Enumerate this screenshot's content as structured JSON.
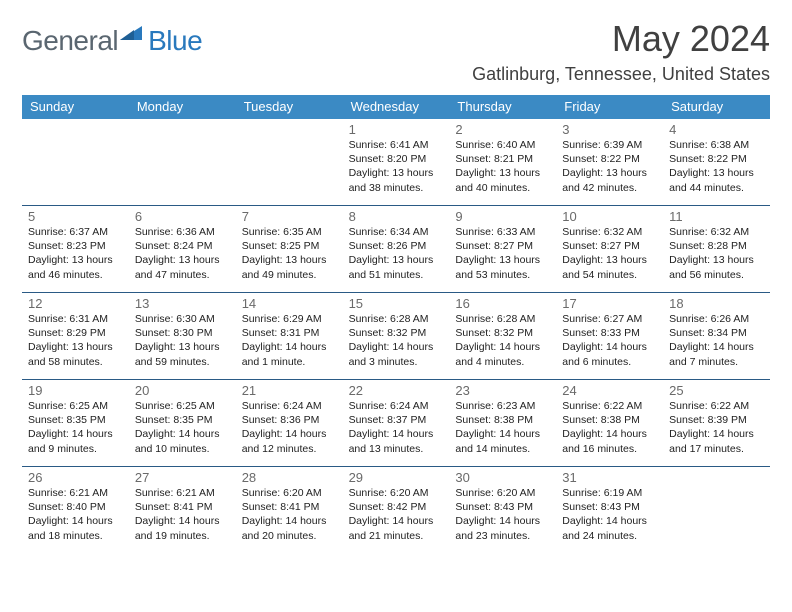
{
  "logo": {
    "general": "General",
    "blue": "Blue"
  },
  "title": "May 2024",
  "location": "Gatlinburg, Tennessee, United States",
  "accent_color": "#3b8ac4",
  "row_border_color": "#2a5a85",
  "day_names": [
    "Sunday",
    "Monday",
    "Tuesday",
    "Wednesday",
    "Thursday",
    "Friday",
    "Saturday"
  ],
  "weeks": [
    [
      {
        "n": "",
        "sr": "",
        "ss": "",
        "dl": ""
      },
      {
        "n": "",
        "sr": "",
        "ss": "",
        "dl": ""
      },
      {
        "n": "",
        "sr": "",
        "ss": "",
        "dl": ""
      },
      {
        "n": "1",
        "sr": "Sunrise: 6:41 AM",
        "ss": "Sunset: 8:20 PM",
        "dl": "Daylight: 13 hours and 38 minutes."
      },
      {
        "n": "2",
        "sr": "Sunrise: 6:40 AM",
        "ss": "Sunset: 8:21 PM",
        "dl": "Daylight: 13 hours and 40 minutes."
      },
      {
        "n": "3",
        "sr": "Sunrise: 6:39 AM",
        "ss": "Sunset: 8:22 PM",
        "dl": "Daylight: 13 hours and 42 minutes."
      },
      {
        "n": "4",
        "sr": "Sunrise: 6:38 AM",
        "ss": "Sunset: 8:22 PM",
        "dl": "Daylight: 13 hours and 44 minutes."
      }
    ],
    [
      {
        "n": "5",
        "sr": "Sunrise: 6:37 AM",
        "ss": "Sunset: 8:23 PM",
        "dl": "Daylight: 13 hours and 46 minutes."
      },
      {
        "n": "6",
        "sr": "Sunrise: 6:36 AM",
        "ss": "Sunset: 8:24 PM",
        "dl": "Daylight: 13 hours and 47 minutes."
      },
      {
        "n": "7",
        "sr": "Sunrise: 6:35 AM",
        "ss": "Sunset: 8:25 PM",
        "dl": "Daylight: 13 hours and 49 minutes."
      },
      {
        "n": "8",
        "sr": "Sunrise: 6:34 AM",
        "ss": "Sunset: 8:26 PM",
        "dl": "Daylight: 13 hours and 51 minutes."
      },
      {
        "n": "9",
        "sr": "Sunrise: 6:33 AM",
        "ss": "Sunset: 8:27 PM",
        "dl": "Daylight: 13 hours and 53 minutes."
      },
      {
        "n": "10",
        "sr": "Sunrise: 6:32 AM",
        "ss": "Sunset: 8:27 PM",
        "dl": "Daylight: 13 hours and 54 minutes."
      },
      {
        "n": "11",
        "sr": "Sunrise: 6:32 AM",
        "ss": "Sunset: 8:28 PM",
        "dl": "Daylight: 13 hours and 56 minutes."
      }
    ],
    [
      {
        "n": "12",
        "sr": "Sunrise: 6:31 AM",
        "ss": "Sunset: 8:29 PM",
        "dl": "Daylight: 13 hours and 58 minutes."
      },
      {
        "n": "13",
        "sr": "Sunrise: 6:30 AM",
        "ss": "Sunset: 8:30 PM",
        "dl": "Daylight: 13 hours and 59 minutes."
      },
      {
        "n": "14",
        "sr": "Sunrise: 6:29 AM",
        "ss": "Sunset: 8:31 PM",
        "dl": "Daylight: 14 hours and 1 minute."
      },
      {
        "n": "15",
        "sr": "Sunrise: 6:28 AM",
        "ss": "Sunset: 8:32 PM",
        "dl": "Daylight: 14 hours and 3 minutes."
      },
      {
        "n": "16",
        "sr": "Sunrise: 6:28 AM",
        "ss": "Sunset: 8:32 PM",
        "dl": "Daylight: 14 hours and 4 minutes."
      },
      {
        "n": "17",
        "sr": "Sunrise: 6:27 AM",
        "ss": "Sunset: 8:33 PM",
        "dl": "Daylight: 14 hours and 6 minutes."
      },
      {
        "n": "18",
        "sr": "Sunrise: 6:26 AM",
        "ss": "Sunset: 8:34 PM",
        "dl": "Daylight: 14 hours and 7 minutes."
      }
    ],
    [
      {
        "n": "19",
        "sr": "Sunrise: 6:25 AM",
        "ss": "Sunset: 8:35 PM",
        "dl": "Daylight: 14 hours and 9 minutes."
      },
      {
        "n": "20",
        "sr": "Sunrise: 6:25 AM",
        "ss": "Sunset: 8:35 PM",
        "dl": "Daylight: 14 hours and 10 minutes."
      },
      {
        "n": "21",
        "sr": "Sunrise: 6:24 AM",
        "ss": "Sunset: 8:36 PM",
        "dl": "Daylight: 14 hours and 12 minutes."
      },
      {
        "n": "22",
        "sr": "Sunrise: 6:24 AM",
        "ss": "Sunset: 8:37 PM",
        "dl": "Daylight: 14 hours and 13 minutes."
      },
      {
        "n": "23",
        "sr": "Sunrise: 6:23 AM",
        "ss": "Sunset: 8:38 PM",
        "dl": "Daylight: 14 hours and 14 minutes."
      },
      {
        "n": "24",
        "sr": "Sunrise: 6:22 AM",
        "ss": "Sunset: 8:38 PM",
        "dl": "Daylight: 14 hours and 16 minutes."
      },
      {
        "n": "25",
        "sr": "Sunrise: 6:22 AM",
        "ss": "Sunset: 8:39 PM",
        "dl": "Daylight: 14 hours and 17 minutes."
      }
    ],
    [
      {
        "n": "26",
        "sr": "Sunrise: 6:21 AM",
        "ss": "Sunset: 8:40 PM",
        "dl": "Daylight: 14 hours and 18 minutes."
      },
      {
        "n": "27",
        "sr": "Sunrise: 6:21 AM",
        "ss": "Sunset: 8:41 PM",
        "dl": "Daylight: 14 hours and 19 minutes."
      },
      {
        "n": "28",
        "sr": "Sunrise: 6:20 AM",
        "ss": "Sunset: 8:41 PM",
        "dl": "Daylight: 14 hours and 20 minutes."
      },
      {
        "n": "29",
        "sr": "Sunrise: 6:20 AM",
        "ss": "Sunset: 8:42 PM",
        "dl": "Daylight: 14 hours and 21 minutes."
      },
      {
        "n": "30",
        "sr": "Sunrise: 6:20 AM",
        "ss": "Sunset: 8:43 PM",
        "dl": "Daylight: 14 hours and 23 minutes."
      },
      {
        "n": "31",
        "sr": "Sunrise: 6:19 AM",
        "ss": "Sunset: 8:43 PM",
        "dl": "Daylight: 14 hours and 24 minutes."
      },
      {
        "n": "",
        "sr": "",
        "ss": "",
        "dl": ""
      }
    ]
  ]
}
